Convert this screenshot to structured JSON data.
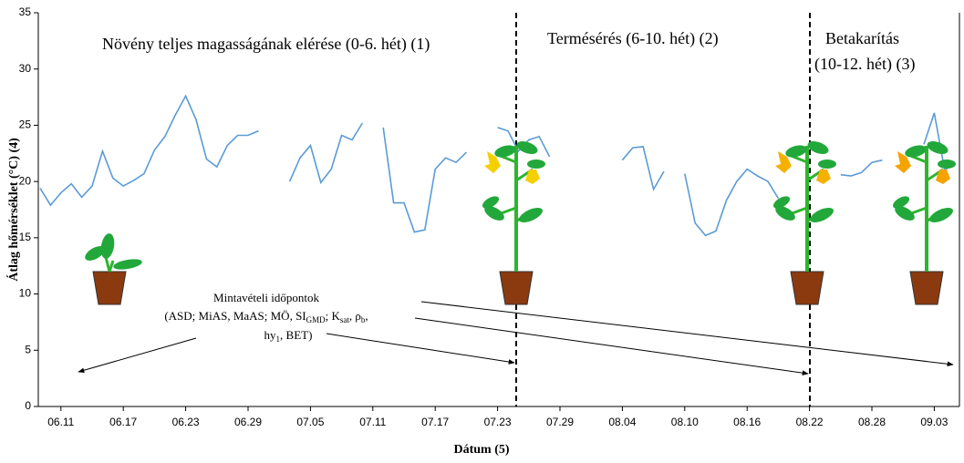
{
  "chart_data": {
    "type": "line",
    "y_label": "Átlag hőmérséklet (°C) (4)",
    "x_label": "Dátum (5)",
    "phase_labels": [
      "Növény teljes magasságának elérése (0-6. hét) (1)",
      "Termésérés (6-10. hét) (2)",
      "Betakarítás",
      "(10-12. hét) (3)"
    ],
    "sampling_title": "Mintavételi időpontok",
    "sampling_lines": [
      [
        "(ASD; MiAS, MaAS; MÖ, SI",
        "GMD",
        "; K",
        "sat",
        ", ρ",
        "b",
        ","
      ],
      [
        "hy",
        "1",
        ", BET)"
      ]
    ],
    "categories": [
      null,
      null,
      "06.11",
      null,
      null,
      null,
      null,
      null,
      "06.17",
      null,
      null,
      null,
      null,
      null,
      "06.23",
      null,
      null,
      null,
      null,
      null,
      "06.29",
      null,
      null,
      null,
      null,
      null,
      "07.05",
      null,
      null,
      null,
      null,
      null,
      "07.11",
      null,
      null,
      null,
      null,
      null,
      "07.17",
      null,
      null,
      null,
      null,
      null,
      "07.23",
      null,
      null,
      null,
      null,
      null,
      "07.29",
      null,
      null,
      null,
      null,
      null,
      "08.04",
      null,
      null,
      null,
      null,
      null,
      "08.10",
      null,
      null,
      null,
      null,
      null,
      "08.16",
      null,
      null,
      null,
      null,
      null,
      "08.22",
      null,
      null,
      null,
      null,
      null,
      "08.28",
      null,
      null,
      null,
      null,
      null,
      "09.03",
      null,
      null
    ],
    "values": [
      19.4,
      17.9,
      19.0,
      19.8,
      18.6,
      19.6,
      22.7,
      20.3,
      19.6,
      20.1,
      20.7,
      22.8,
      24.0,
      25.9,
      27.6,
      25.5,
      22.0,
      21.3,
      23.2,
      24.1,
      24.1,
      24.5,
      null,
      null,
      20.0,
      22.1,
      23.2,
      19.9,
      21.1,
      24.1,
      23.7,
      25.2,
      null,
      24.8,
      18.1,
      18.1,
      15.5,
      15.7,
      21.1,
      22.1,
      21.7,
      22.6,
      null,
      null,
      24.8,
      24.5,
      22.7,
      23.7,
      24.0,
      22.2,
      null,
      null,
      null,
      null,
      null,
      null,
      21.9,
      23.0,
      23.1,
      19.3,
      20.9,
      null,
      20.7,
      16.3,
      15.2,
      15.6,
      18.3,
      20.0,
      21.1,
      20.5,
      20.0,
      18.5,
      null,
      null,
      null,
      null,
      null,
      20.6,
      20.5,
      20.8,
      21.7,
      21.9,
      null,
      null,
      null,
      23.3,
      26.1,
      21.0,
      21.7
    ],
    "color": "#5b9bd5",
    "ylim": [
      0,
      35
    ],
    "yticks": [
      0,
      5,
      10,
      15,
      20,
      25,
      30,
      35
    ]
  }
}
